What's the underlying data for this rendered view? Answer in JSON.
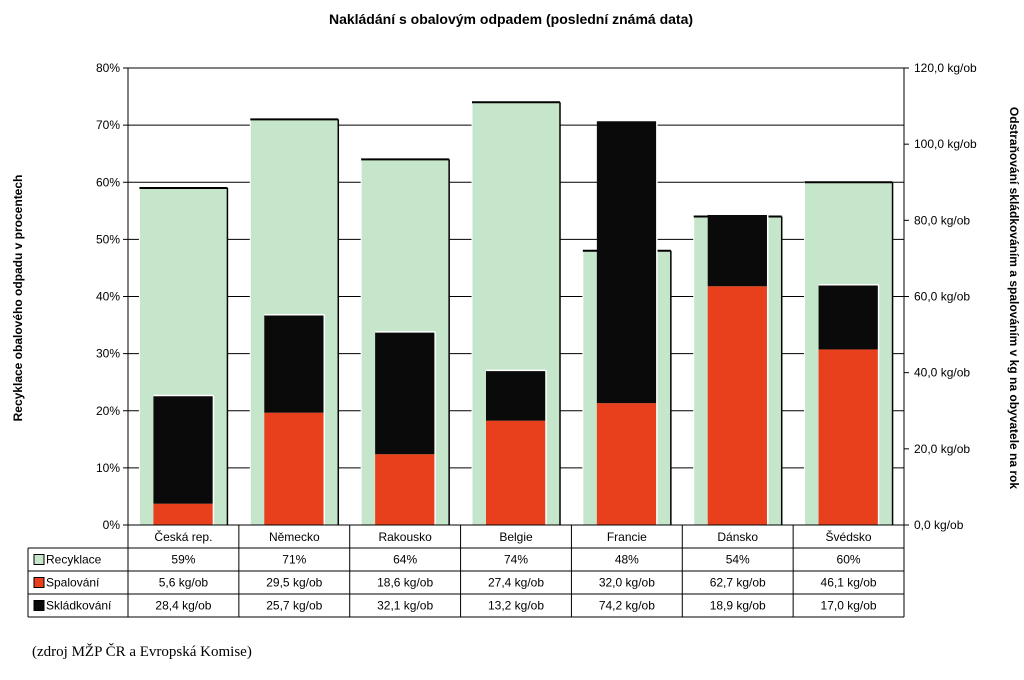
{
  "chart_data": {
    "type": "bar",
    "title": "Nakládání s obalovým odpadem (poslední známá data)",
    "ylabel_left": "Recyklace obalového odpadu v procentech",
    "ylabel_right": "Odstraňování skládkováním a spalováním v kg na obyvatele na rok",
    "ylim_left": [
      0,
      80
    ],
    "ylim_right": [
      0,
      120
    ],
    "left_ticks": [
      "0%",
      "10%",
      "20%",
      "30%",
      "40%",
      "50%",
      "60%",
      "70%",
      "80%"
    ],
    "right_ticks": [
      "0,0 kg/ob",
      "20,0 kg/ob",
      "40,0 kg/ob",
      "60,0 kg/ob",
      "80,0 kg/ob",
      "100,0 kg/ob",
      "120,0 kg/ob"
    ],
    "categories": [
      "Česká rep.",
      "Německo",
      "Rakousko",
      "Belgie",
      "Francie",
      "Dánsko",
      "Švédsko"
    ],
    "series": [
      {
        "name": "Recyklace",
        "axis": "left",
        "color": "#c6e6cc",
        "values": [
          59,
          71,
          64,
          74,
          48,
          54,
          60
        ],
        "labels": [
          "59%",
          "71%",
          "64%",
          "74%",
          "48%",
          "54%",
          "60%"
        ]
      },
      {
        "name": "Spalování",
        "axis": "right",
        "color": "#e8401c",
        "values": [
          5.6,
          29.5,
          18.6,
          27.4,
          32.0,
          62.7,
          46.1
        ],
        "labels": [
          "5,6 kg/ob",
          "29,5 kg/ob",
          "18,6 kg/ob",
          "27,4 kg/ob",
          "32,0 kg/ob",
          "62,7 kg/ob",
          "46,1 kg/ob"
        ]
      },
      {
        "name": "Skládkování",
        "axis": "right",
        "color": "#0a0a0a",
        "values": [
          28.4,
          25.7,
          32.1,
          13.2,
          74.2,
          18.9,
          17.0
        ],
        "labels": [
          "28,4 kg/ob",
          "25,7 kg/ob",
          "32,1 kg/ob",
          "13,2 kg/ob",
          "74,2 kg/ob",
          "18,9 kg/ob",
          "17,0 kg/ob"
        ]
      }
    ],
    "grid": true,
    "legend": "data-table"
  },
  "source_note": "(zdroj MŽP ČR a Evropská Komise)"
}
